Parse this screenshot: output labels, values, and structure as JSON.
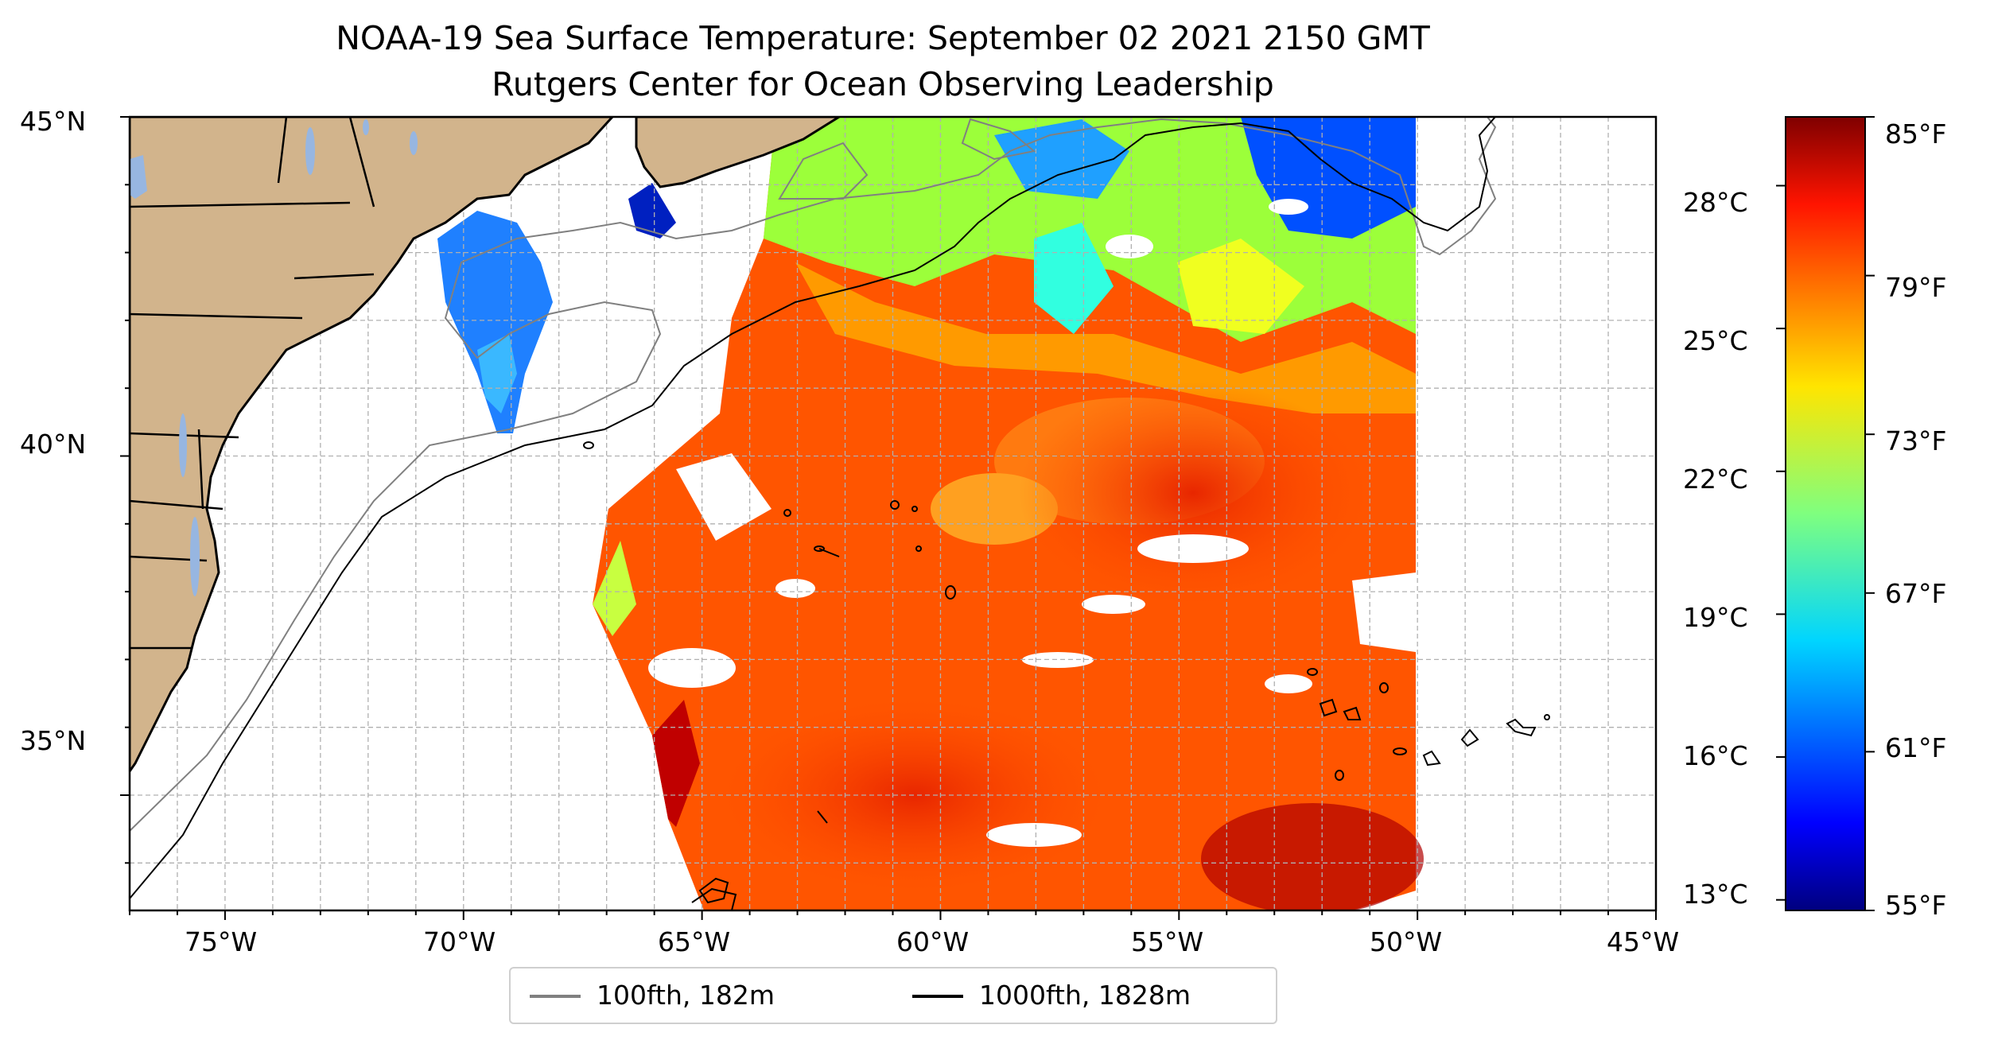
{
  "title": "NOAA-19 Sea Surface Temperature: September 02 2021 2150 GMT",
  "subtitle": "Rutgers Center for Ocean Observing Leadership",
  "map": {
    "lon_range": [
      -77,
      -45
    ],
    "lat_range": [
      33.3,
      45
    ],
    "lon_ticks": [
      {
        "value": -75,
        "label": "75°W"
      },
      {
        "value": -70,
        "label": "70°W"
      },
      {
        "value": -65,
        "label": "65°W"
      },
      {
        "value": -60,
        "label": "60°W"
      },
      {
        "value": -55,
        "label": "55°W"
      },
      {
        "value": -50,
        "label": "50°W"
      },
      {
        "value": -45,
        "label": "45°W"
      }
    ],
    "lat_ticks": [
      {
        "value": 45,
        "label": "45°N"
      },
      {
        "value": 40,
        "label": "40°N"
      },
      {
        "value": 35,
        "label": "35°N"
      }
    ],
    "gridlines": "dashed, every 1 degree",
    "land_color": "#d2b48c",
    "lake_color": "#97b6e1",
    "coast_color": "#000000"
  },
  "colorbar": {
    "colormap": "jet",
    "celsius_labels": [
      "28°C",
      "25°C",
      "22°C",
      "19°C",
      "16°C",
      "13°C"
    ],
    "fahrenheit_labels": [
      "85°F",
      "79°F",
      "73°F",
      "67°F",
      "61°F",
      "55°F"
    ],
    "min_f": 55,
    "max_f": 85
  },
  "legend": {
    "items": [
      {
        "label": "100fth, 182m",
        "color": "#808080"
      },
      {
        "label": "1000fth, 1828m",
        "color": "#000000"
      }
    ]
  }
}
